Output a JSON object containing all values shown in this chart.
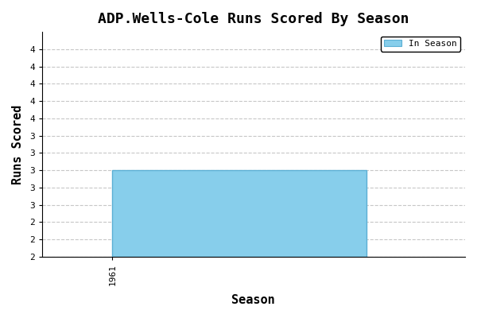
{
  "title": "ADP.Wells-Cole Runs Scored By Season",
  "xlabel": "Season",
  "ylabel": "Runs Scored",
  "seasons": [
    1961
  ],
  "values": [
    3
  ],
  "bar_color": "#87CEEB",
  "bar_edge_color": "#5BAFD4",
  "xlim": [
    1960.5,
    1963.5
  ],
  "ylim": [
    2.0,
    4.6
  ],
  "yticks": [
    2.0,
    2.2,
    2.4,
    2.6,
    2.8,
    3.0,
    3.2,
    3.4,
    3.6,
    3.8,
    4.0,
    4.2,
    4.4
  ],
  "ytick_labels": [
    "2",
    "2",
    "2",
    "3",
    "3",
    "3",
    "3",
    "3",
    "4",
    "4",
    "4",
    "4",
    "4"
  ],
  "background_color": "#ffffff",
  "grid_color": "#b0b0b0",
  "legend_label": "In Season",
  "legend_box_color": "#87CEEB",
  "legend_box_edge": "#5BAFD4",
  "title_fontsize": 13,
  "axis_label_fontsize": 11,
  "tick_fontsize": 8,
  "font_family": "monospace"
}
